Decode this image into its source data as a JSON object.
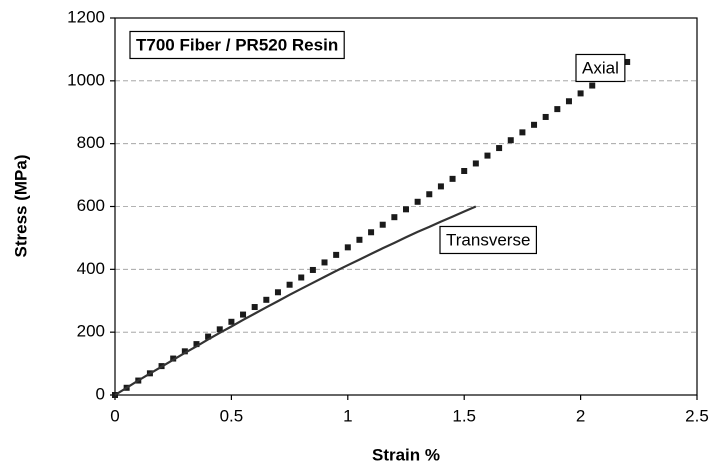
{
  "chart_data": {
    "type": "line",
    "annotations": [
      "T700 Fiber / PR520 Resin"
    ],
    "xlabel": "Strain %",
    "ylabel": "Stress (MPa)",
    "xlim": [
      0,
      2.5
    ],
    "xticks": [
      0,
      0.5,
      1,
      1.5,
      2,
      2.5
    ],
    "ylim": [
      0,
      1200
    ],
    "yticks": [
      0,
      200,
      400,
      600,
      800,
      1000,
      1200
    ],
    "grid": true,
    "series": [
      {
        "name": "Axial",
        "color": "#1a1a1a",
        "marker": "square",
        "x": [
          0,
          0.05,
          0.1,
          0.15,
          0.2,
          0.25,
          0.3,
          0.35,
          0.4,
          0.45,
          0.5,
          0.55,
          0.6,
          0.65,
          0.7,
          0.75,
          0.8,
          0.85,
          0.9,
          0.95,
          1,
          1.05,
          1.1,
          1.15,
          1.2,
          1.25,
          1.3,
          1.35,
          1.4,
          1.45,
          1.5,
          1.55,
          1.6,
          1.65,
          1.7,
          1.75,
          1.8,
          1.85,
          1.9,
          1.95,
          2,
          2.05,
          2.1,
          2.15,
          2.2
        ],
        "values": [
          0,
          23,
          46,
          69,
          92,
          116,
          139,
          162,
          186,
          209,
          233,
          256,
          280,
          303,
          327,
          351,
          374,
          398,
          422,
          446,
          470,
          494,
          518,
          542,
          566,
          591,
          615,
          639,
          664,
          688,
          713,
          737,
          762,
          786,
          811,
          836,
          860,
          885,
          910,
          935,
          960,
          985,
          1010,
          1035,
          1060
        ]
      },
      {
        "name": "Transverse",
        "color": "#333333",
        "marker": "none",
        "x": [
          0,
          0.05,
          0.1,
          0.15,
          0.2,
          0.25,
          0.3,
          0.35,
          0.4,
          0.45,
          0.5,
          0.55,
          0.6,
          0.65,
          0.7,
          0.75,
          0.8,
          0.85,
          0.9,
          0.95,
          1,
          1.05,
          1.1,
          1.15,
          1.2,
          1.25,
          1.3,
          1.35,
          1.4,
          1.45,
          1.5,
          1.55
        ],
        "values": [
          0,
          23,
          46,
          68,
          90,
          112,
          134,
          155,
          177,
          198,
          218,
          239,
          259,
          279,
          299,
          319,
          338,
          357,
          376,
          395,
          413,
          431,
          449,
          467,
          484,
          502,
          519,
          535,
          552,
          568,
          584,
          600
        ]
      }
    ]
  }
}
